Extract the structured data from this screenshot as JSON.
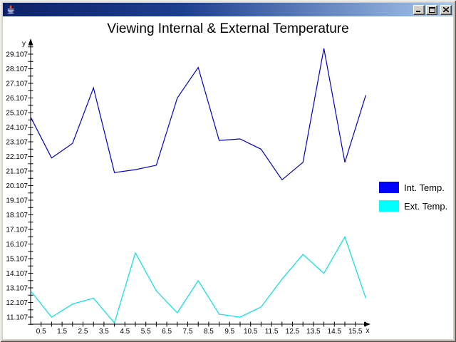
{
  "window": {
    "icon": "java-coffee-cup-icon",
    "controls": [
      "minimize",
      "maximize",
      "close"
    ]
  },
  "chart_data": {
    "type": "line",
    "title": "Viewing Internal & External Temperature",
    "xlabel": "x",
    "ylabel": "y",
    "x": [
      0,
      1,
      2,
      3,
      4,
      5,
      6,
      7,
      8,
      9,
      10,
      11,
      12,
      13,
      14,
      15,
      16
    ],
    "series": [
      {
        "name": "Int. Temp.",
        "line_color": "#0000cd",
        "swatch_color": "#0000ff",
        "values": [
          24.8,
          22.0,
          23.0,
          26.8,
          21.0,
          21.2,
          21.5,
          26.1,
          28.2,
          23.2,
          23.3,
          22.6,
          20.5,
          21.7,
          29.5,
          21.7,
          26.3
        ]
      },
      {
        "name": "Ext. Temp.",
        "line_color": "#00e1ea",
        "swatch_color": "#00ffff",
        "values": [
          12.9,
          11.1,
          12.0,
          12.4,
          10.7,
          15.5,
          12.9,
          11.4,
          13.6,
          11.3,
          11.1,
          11.8,
          13.7,
          15.4,
          14.1,
          16.6,
          12.4
        ]
      }
    ],
    "y_tick_labels": [
      "11.107",
      "12.107",
      "13.107",
      "14.107",
      "15.107",
      "16.107",
      "17.107",
      "18.107",
      "19.107",
      "20.107",
      "21.107",
      "22.107",
      "23.107",
      "24.107",
      "25.107",
      "26.107",
      "27.107",
      "28.107",
      "29.107"
    ],
    "x_tick_labels": [
      "0.5",
      "1.5",
      "2.5",
      "3.5",
      "4.5",
      "5.5",
      "6.5",
      "7.5",
      "8.5",
      "9.5",
      "10.5",
      "11.5",
      "12.5",
      "13.5",
      "14.5",
      "15.5"
    ],
    "xlim": [
      0,
      16.75
    ],
    "ylim": [
      10.6,
      30.1
    ],
    "grid": false,
    "legend_position": "right"
  }
}
